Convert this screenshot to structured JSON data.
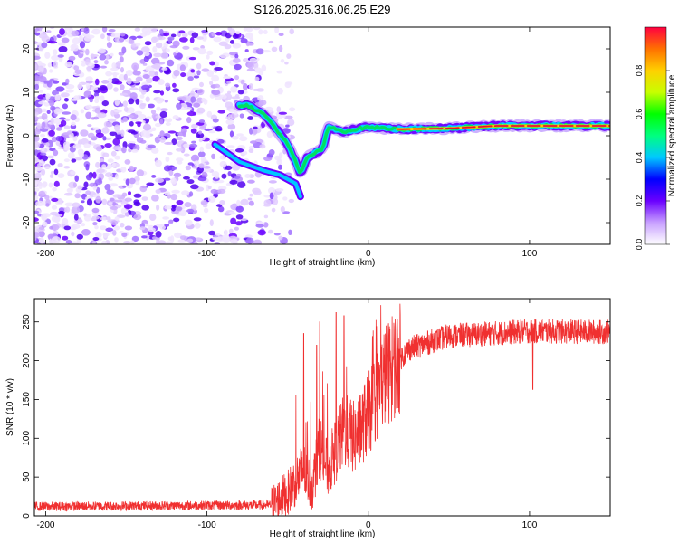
{
  "title": "S126.2025.316.06.25.E29",
  "chart_data": [
    {
      "type": "heatmap",
      "name": "spectrogram",
      "xlabel": "Height of straight line (km)",
      "ylabel": "Frequency (Hz)",
      "xlim": [
        -207,
        150
      ],
      "ylim": [
        -25,
        25
      ],
      "xticks": [
        -200,
        -100,
        0,
        100
      ],
      "yticks": [
        -20,
        -10,
        0,
        10,
        20
      ],
      "ridge": [
        {
          "x": -75,
          "y": 7
        },
        {
          "x": -65,
          "y": 5
        },
        {
          "x": -60,
          "y": 3
        },
        {
          "x": -50,
          "y": -2
        },
        {
          "x": -45,
          "y": -6
        },
        {
          "x": -42,
          "y": -9
        },
        {
          "x": -38,
          "y": -5
        },
        {
          "x": -33,
          "y": -4
        },
        {
          "x": -28,
          "y": -3
        },
        {
          "x": -25,
          "y": 2
        },
        {
          "x": -15,
          "y": 1
        },
        {
          "x": 0,
          "y": 2
        },
        {
          "x": 20,
          "y": 1.5
        },
        {
          "x": 50,
          "y": 1.7
        },
        {
          "x": 80,
          "y": 2.3
        },
        {
          "x": 110,
          "y": 2.3
        },
        {
          "x": 150,
          "y": 2.3
        }
      ],
      "colorbar": {
        "label": "Normalized spectral amplitude",
        "range": [
          0,
          1
        ],
        "ticks": [
          "0.0",
          "0.2",
          "0.4",
          "0.6",
          "0.8"
        ],
        "colors": [
          "#ffffff",
          "#c8a0ff",
          "#6a00ff",
          "#0000ff",
          "#00c8ff",
          "#00ff80",
          "#00ff00",
          "#c8ff00",
          "#ffd000",
          "#ff7000",
          "#ff0040"
        ]
      }
    },
    {
      "type": "line",
      "name": "snr",
      "xlabel": "Height of straight line (km)",
      "ylabel": "SNR (10 * v/v)",
      "xlim": [
        -207,
        150
      ],
      "ylim": [
        0,
        280
      ],
      "xticks": [
        -200,
        -100,
        0,
        100
      ],
      "yticks": [
        0,
        50,
        100,
        150,
        200,
        250
      ],
      "color": "#f03030",
      "profile": [
        {
          "x": -207,
          "y": 12
        },
        {
          "x": -60,
          "y": 14
        },
        {
          "x": -50,
          "y": 30
        },
        {
          "x": -40,
          "y": 60
        },
        {
          "x": -35,
          "y": 35
        },
        {
          "x": -30,
          "y": 90
        },
        {
          "x": -25,
          "y": 60
        },
        {
          "x": -15,
          "y": 110
        },
        {
          "x": -8,
          "y": 100
        },
        {
          "x": 0,
          "y": 130
        },
        {
          "x": 10,
          "y": 180
        },
        {
          "x": 25,
          "y": 215
        },
        {
          "x": 50,
          "y": 232
        },
        {
          "x": 100,
          "y": 238
        },
        {
          "x": 150,
          "y": 237
        }
      ],
      "spikes": [
        {
          "x": -40,
          "y": 235
        },
        {
          "x": -32,
          "y": 220
        },
        {
          "x": -30,
          "y": 250
        },
        {
          "x": -20,
          "y": 262
        },
        {
          "x": -15,
          "y": 258
        },
        {
          "x": 102,
          "y": 163
        }
      ]
    }
  ]
}
